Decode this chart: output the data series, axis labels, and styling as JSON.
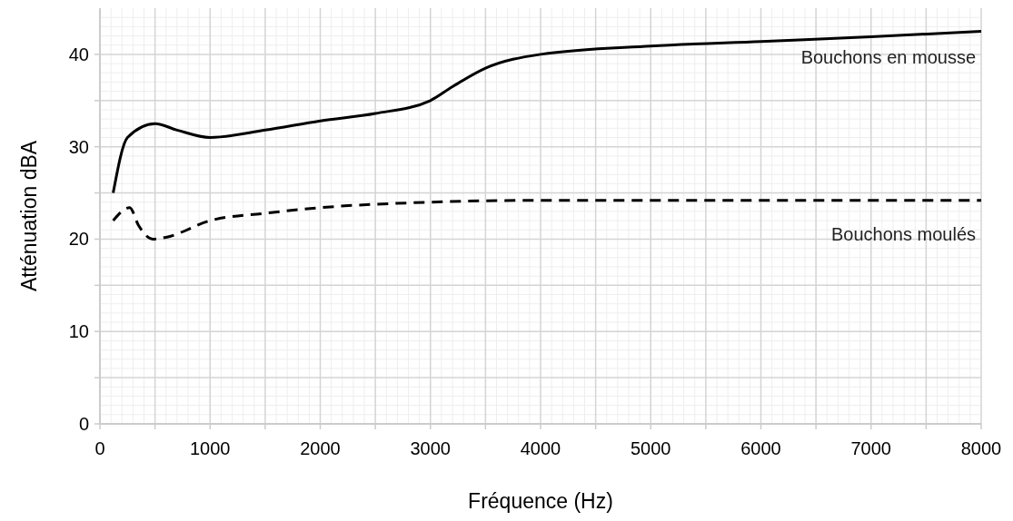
{
  "chart_data": {
    "type": "line",
    "xlabel": "Fréquence (Hz)",
    "ylabel": "Atténuation dBA",
    "xlim": [
      0,
      8000
    ],
    "ylim": [
      0,
      45
    ],
    "xticks": [
      0,
      {
        "value": 500,
        "label": null
      },
      1000,
      {
        "value": 1500,
        "label": null
      },
      2000,
      {
        "value": 2500,
        "label": null
      },
      3000,
      {
        "value": 3500,
        "label": null
      },
      4000,
      {
        "value": 4500,
        "label": null
      },
      5000,
      {
        "value": 5500,
        "label": null
      },
      6000,
      {
        "value": 6500,
        "label": null
      },
      7000,
      {
        "value": 7500,
        "label": null
      },
      8000
    ],
    "yticks": [
      0,
      {
        "value": 5,
        "label": null
      },
      10,
      {
        "value": 15,
        "label": null
      },
      20,
      {
        "value": 25,
        "label": null
      },
      30,
      {
        "value": 35,
        "label": null
      },
      40
    ],
    "grid": true,
    "marker": "none",
    "series": [
      {
        "name": "Bouchons en mousse",
        "color": "#000000",
        "line_style": "solid",
        "x": [
          120,
          250,
          500,
          700,
          1000,
          1500,
          2000,
          2500,
          3000,
          3200,
          3500,
          4000,
          5000,
          6000,
          7000,
          8000
        ],
        "values": [
          25,
          31,
          32.5,
          31.8,
          31,
          31.8,
          32.8,
          33.6,
          35,
          36.5,
          38.5,
          40,
          40.9,
          41.4,
          41.9,
          42.5
        ]
      },
      {
        "name": "Bouchons moulés",
        "color": "#000000",
        "line_style": "dashed",
        "x": [
          120,
          270,
          350,
          480,
          600,
          1000,
          1500,
          2000,
          3000,
          4000,
          8000
        ],
        "values": [
          22,
          23.4,
          21.5,
          20,
          20.2,
          22,
          22.8,
          23.4,
          24,
          24.2,
          24.2
        ]
      }
    ]
  }
}
